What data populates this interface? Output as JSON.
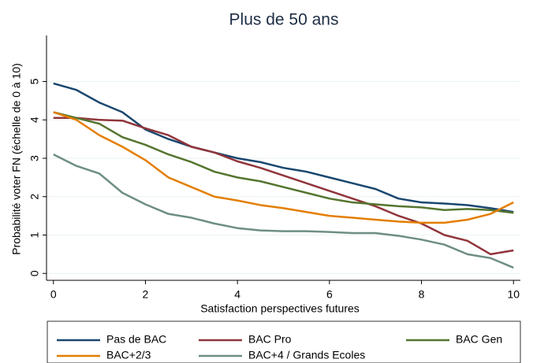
{
  "chart_data": {
    "type": "line",
    "title": "Plus de 50 ans",
    "x_label": "Satisfaction perspectives futures",
    "y_label": "Probabilité voter FN (échelle de 0 à 10)",
    "x": [
      0,
      0.5,
      1,
      1.5,
      2,
      2.5,
      3,
      3.5,
      4,
      4.5,
      5,
      5.5,
      6,
      6.5,
      7,
      7.5,
      8,
      8.5,
      9,
      9.5,
      10
    ],
    "series": [
      {
        "name": "Pas de BAC",
        "color": "#1a476f",
        "values": [
          4.95,
          4.78,
          4.45,
          4.2,
          3.75,
          3.5,
          3.3,
          3.15,
          3.0,
          2.9,
          2.75,
          2.65,
          2.5,
          2.35,
          2.2,
          1.95,
          1.85,
          1.82,
          1.78,
          1.7,
          1.6
        ]
      },
      {
        "name": "BAC Pro",
        "color": "#90353b",
        "values": [
          4.05,
          4.05,
          4.0,
          3.98,
          3.78,
          3.6,
          3.3,
          3.15,
          2.92,
          2.75,
          2.55,
          2.35,
          2.15,
          1.95,
          1.75,
          1.5,
          1.3,
          1.0,
          0.85,
          0.5,
          0.6
        ]
      },
      {
        "name": "BAC Gen",
        "color": "#55752f",
        "values": [
          4.2,
          4.05,
          3.9,
          3.55,
          3.35,
          3.1,
          2.9,
          2.65,
          2.5,
          2.4,
          2.25,
          2.1,
          1.95,
          1.85,
          1.8,
          1.75,
          1.72,
          1.65,
          1.68,
          1.65,
          1.58
        ]
      },
      {
        "name": "BAC+2/3",
        "color": "#e37e00",
        "values": [
          4.2,
          4.0,
          3.6,
          3.3,
          2.95,
          2.5,
          2.25,
          2.0,
          1.9,
          1.78,
          1.7,
          1.6,
          1.5,
          1.45,
          1.4,
          1.35,
          1.32,
          1.32,
          1.4,
          1.55,
          1.85
        ]
      },
      {
        "name": "BAC+4 / Grands Ecoles",
        "color": "#6e8e84",
        "values": [
          3.1,
          2.8,
          2.6,
          2.1,
          1.8,
          1.55,
          1.45,
          1.3,
          1.18,
          1.12,
          1.1,
          1.1,
          1.08,
          1.05,
          1.05,
          0.98,
          0.88,
          0.75,
          0.5,
          0.4,
          0.15
        ]
      }
    ],
    "xlim": [
      -0.15,
      10.15
    ],
    "ylim": [
      -0.18,
      6.2
    ],
    "xticks": [
      0,
      2,
      4,
      6,
      8,
      10
    ],
    "yticks": [
      0,
      1,
      2,
      3,
      4,
      5
    ],
    "grid": true,
    "legend": "bottom"
  }
}
